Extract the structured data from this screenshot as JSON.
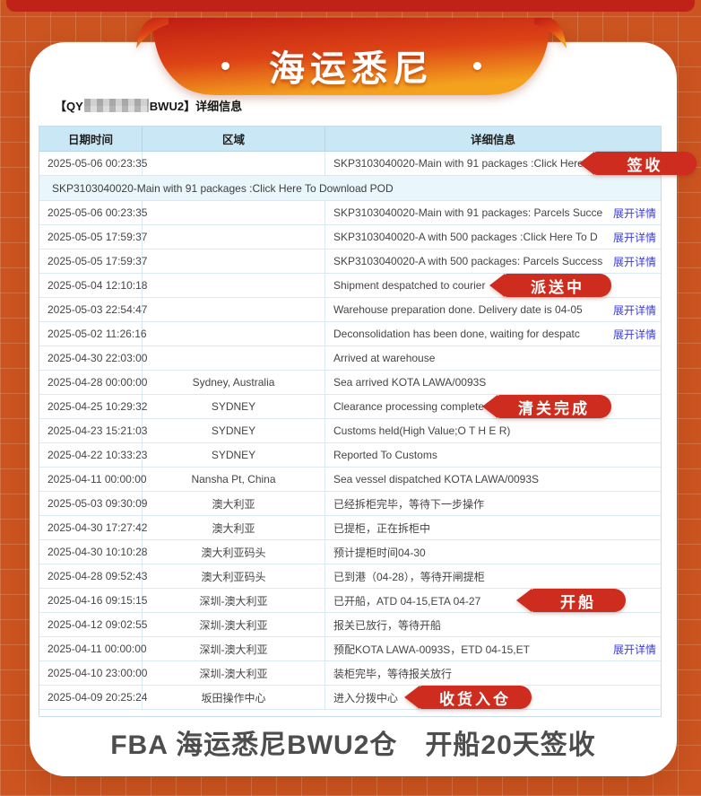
{
  "banner": {
    "title": "海运悉尼"
  },
  "card": {
    "title_prefix": "【QY",
    "title_suffix": "BWU2】详细信息"
  },
  "table": {
    "columns": [
      "日期时间",
      "区域",
      "详细信息"
    ],
    "expand_label": "展开详情",
    "rows": [
      {
        "date": "2025-05-06 00:23:35",
        "region": "",
        "detail": "SKP3103040020-Main with 91 packages :Click Here To",
        "badge": "签收"
      },
      {
        "expanded": true,
        "detail": "SKP3103040020-Main with 91 packages :Click Here To Download POD"
      },
      {
        "date": "2025-05-06 00:23:35",
        "region": "",
        "detail": "SKP3103040020-Main with 91 packages: Parcels Succe",
        "link": "展开详情"
      },
      {
        "date": "2025-05-05 17:59:37",
        "region": "",
        "detail": "SKP3103040020-A with 500 packages :Click Here To D",
        "link": "展开详情"
      },
      {
        "date": "2025-05-05 17:59:37",
        "region": "",
        "detail": "SKP3103040020-A with 500 packages: Parcels Success",
        "link": "展开详情"
      },
      {
        "date": "2025-05-04 12:10:18",
        "region": "",
        "detail": "Shipment despatched to courier",
        "badge": "派送中"
      },
      {
        "date": "2025-05-03 22:54:47",
        "region": "",
        "detail": "Warehouse preparation done. Delivery date is 04-05",
        "link": "展开详情"
      },
      {
        "date": "2025-05-02 11:26:16",
        "region": "",
        "detail": "Deconsolidation has been done, waiting for despatc",
        "link": "展开详情"
      },
      {
        "date": "2025-04-30 22:03:00",
        "region": "",
        "detail": "Arrived at warehouse"
      },
      {
        "date": "2025-04-28 00:00:00",
        "region": "Sydney, Australia",
        "detail": "Sea arrived KOTA LAWA/0093S"
      },
      {
        "date": "2025-04-25 10:29:32",
        "region": "SYDNEY",
        "detail": "Clearance processing complete",
        "badge": "清关完成"
      },
      {
        "date": "2025-04-23 15:21:03",
        "region": "SYDNEY",
        "detail": "Customs held(High Value;O T H E R)"
      },
      {
        "date": "2025-04-22 10:33:23",
        "region": "SYDNEY",
        "detail": "Reported To Customs"
      },
      {
        "date": "2025-04-11 00:00:00",
        "region": "Nansha Pt, China",
        "detail": "Sea vessel dispatched KOTA LAWA/0093S"
      },
      {
        "date": "2025-05-03 09:30:09",
        "region": "澳大利亚",
        "detail": "已经拆柜完毕，等待下一步操作"
      },
      {
        "date": "2025-04-30 17:27:42",
        "region": "澳大利亚",
        "detail": "已提柜，正在拆柜中"
      },
      {
        "date": "2025-04-30 10:10:28",
        "region": "澳大利亚码头",
        "detail": "预计提柜时间04-30"
      },
      {
        "date": "2025-04-28 09:52:43",
        "region": "澳大利亚码头",
        "detail": "已到港（04-28），等待开闸提柜"
      },
      {
        "date": "2025-04-16 09:15:15",
        "region": "深圳-澳大利亚",
        "detail": "已开船，ATD 04-15,ETA 04-27",
        "badge": "开船"
      },
      {
        "date": "2025-04-12 09:02:55",
        "region": "深圳-澳大利亚",
        "detail": "报关已放行，等待开船"
      },
      {
        "date": "2025-04-11 00:00:00",
        "region": "深圳-澳大利亚",
        "detail": "预配KOTA LAWA-0093S，ETD 04-15,ET",
        "link": "展开详情"
      },
      {
        "date": "2025-04-10 23:00:00",
        "region": "深圳-澳大利亚",
        "detail": "装柜完毕，等待报关放行"
      },
      {
        "date": "2025-04-09 20:25:24",
        "region": "坂田操作中心",
        "detail": "进入分拨中心",
        "badge": "收货入仓"
      }
    ]
  },
  "footer": {
    "caption": "FBA 海运悉尼BWU2仓　开船20天签收"
  },
  "colors": {
    "background_orange": "#cb5420",
    "band_red": "#bf2318",
    "ribbon_red": "#c01d13",
    "ribbon_orange": "#f29c1d",
    "badge_red": "#ce2c1e",
    "table_header_bg": "#cae7f5",
    "expanded_row_bg": "#e9f6fc",
    "link_blue": "#3b3bd8",
    "caption_gray": "#4d4d4d"
  }
}
